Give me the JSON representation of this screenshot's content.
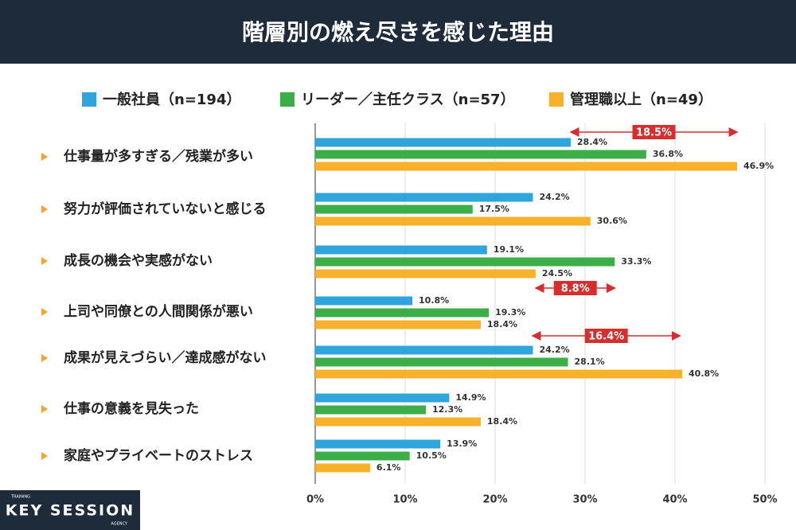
{
  "chart_data": {
    "type": "hbar",
    "title": "階層別の燃え尽きを感じた理由",
    "categories": [
      "仕事量が多すぎる／残業が多い",
      "努力が評価されていないと感じる",
      "成長の機会や実感がない",
      "上司や同僚との人間関係が悪い",
      "成果が見えづらい／達成感がない",
      "仕事の意義を見失った",
      "家庭やプライベートのストレス"
    ],
    "series": [
      {
        "name": "一般社員（n=194）",
        "color": "#2fa5dc",
        "values": [
          28.4,
          24.2,
          19.1,
          10.8,
          24.2,
          14.9,
          13.9
        ],
        "value_labels": [
          "28.4%",
          "24.2%",
          "19.1%",
          "10.8%",
          "24.2%",
          "14.9%",
          "13.9%"
        ]
      },
      {
        "name": "リーダー／主任クラス（n=57）",
        "color": "#3cae48",
        "values": [
          36.8,
          17.5,
          33.3,
          19.3,
          28.1,
          12.3,
          10.5
        ],
        "value_labels": [
          "36.8%",
          "17.5%",
          "33.3%",
          "19.3%",
          "28.1%",
          "12.3%",
          "10.5%"
        ]
      },
      {
        "name": "管理職以上（n=49）",
        "color": "#f7b12b",
        "values": [
          46.9,
          30.6,
          24.5,
          18.4,
          40.8,
          18.4,
          6.1
        ],
        "value_labels": [
          "46.9%",
          "30.6%",
          "24.5%",
          "18.4%",
          "40.8%",
          "18.4%",
          "6.1%"
        ]
      }
    ],
    "xlim": [
      0,
      50
    ],
    "xticks": [
      {
        "value": 0,
        "label": "0%"
      },
      {
        "value": 10,
        "label": "10%"
      },
      {
        "value": 20,
        "label": "20%"
      },
      {
        "value": 30,
        "label": "30%"
      },
      {
        "value": 40,
        "label": "40%"
      },
      {
        "value": 50,
        "label": "50%"
      }
    ],
    "grid": true,
    "annotations": [
      {
        "text": "18.5%",
        "value": 18.5
      },
      {
        "text": "8.8%",
        "value": 8.8
      },
      {
        "text": "16.4%",
        "value": 16.4
      }
    ]
  },
  "logo": {
    "top": "TRAINING",
    "main": "KEY SESSION",
    "bottom": "AGENCY"
  }
}
